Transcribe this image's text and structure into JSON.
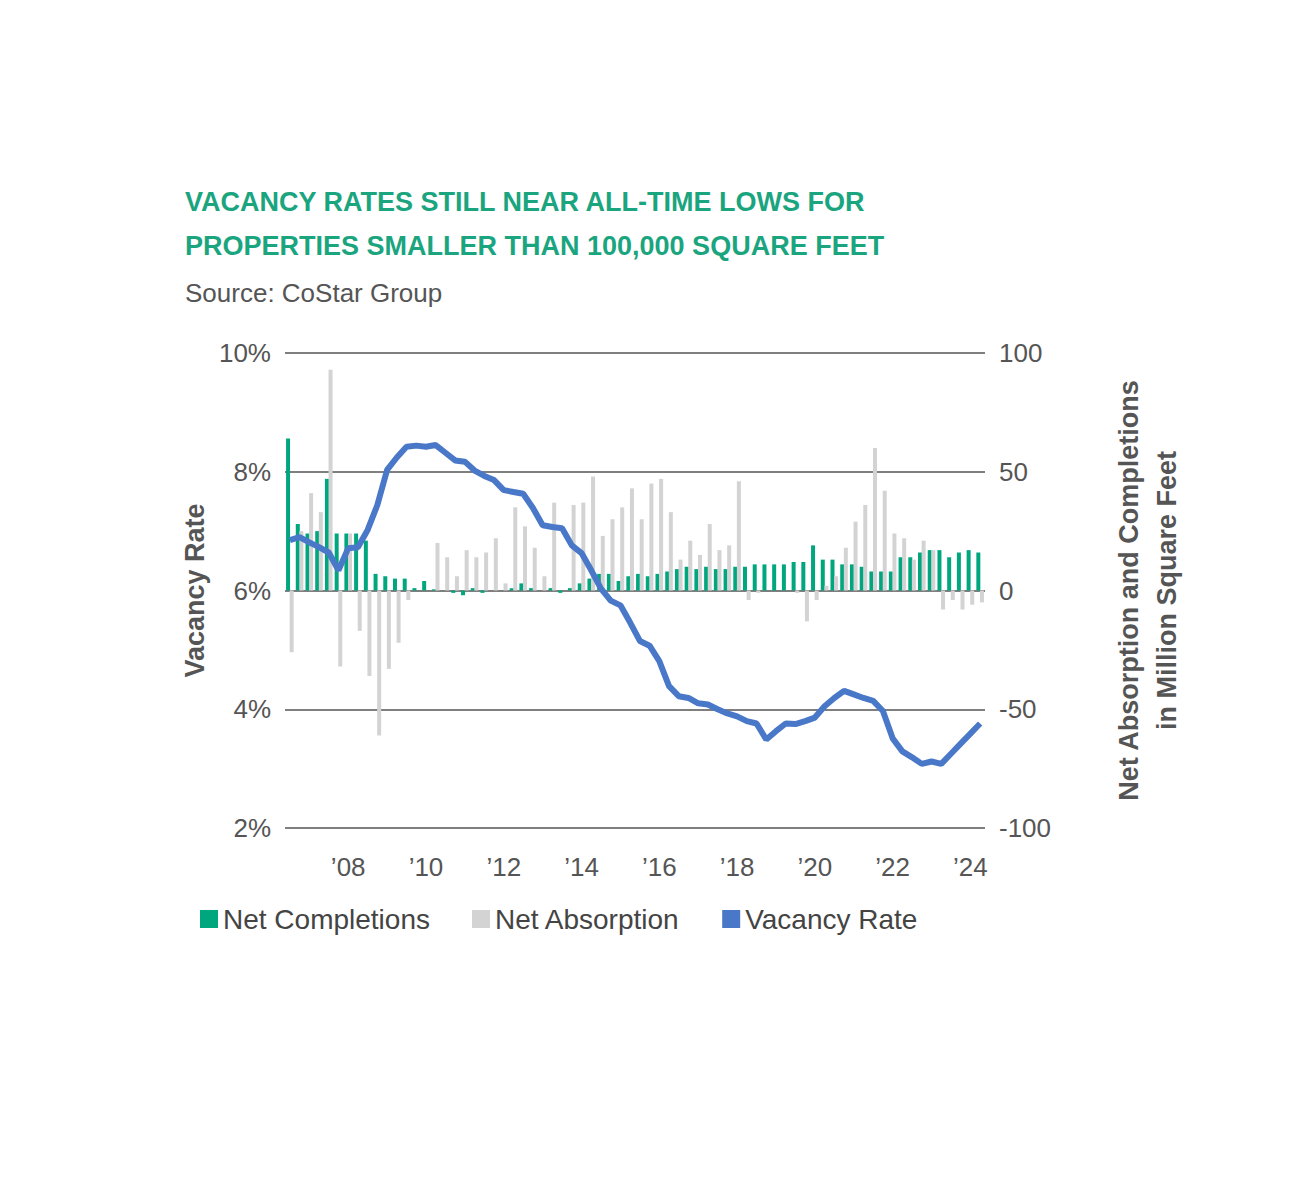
{
  "chart_data": {
    "type": "bar",
    "title": "VACANCY RATES STILL NEAR ALL-TIME LOWS FOR\nPROPERTIES SMALLER THAN 100,000 SQUARE FEET",
    "subtitle": "Source: CoStar Group",
    "y_label": "Vacancy Rate",
    "y2_label": "Net Absorption and Completions\nin Million Square Feet",
    "categories": [
      null,
      null,
      null,
      null,
      null,
      null,
      "’08",
      null,
      null,
      null,
      null,
      null,
      null,
      null,
      "’10",
      null,
      null,
      null,
      null,
      null,
      null,
      null,
      "’12",
      null,
      null,
      null,
      null,
      null,
      null,
      null,
      "’14",
      null,
      null,
      null,
      null,
      null,
      null,
      null,
      "’16",
      null,
      null,
      null,
      null,
      null,
      null,
      null,
      "’18",
      null,
      null,
      null,
      null,
      null,
      null,
      null,
      "’20",
      null,
      null,
      null,
      null,
      null,
      null,
      null,
      "’22",
      null,
      null,
      null,
      null,
      null,
      null,
      null,
      "’24",
      null
    ],
    "series": [
      {
        "name": "Net Completions",
        "type": "bar",
        "axis": "y2",
        "color": "#00a67e",
        "values": [
          64,
          28,
          24,
          25,
          47,
          24,
          24,
          24,
          21,
          7,
          6,
          5,
          5,
          1,
          4,
          0.5,
          0,
          -1,
          -2,
          1,
          -1,
          0,
          0,
          1,
          3,
          1,
          0,
          1,
          -1,
          1,
          3,
          5,
          7,
          7,
          4,
          6,
          7,
          6,
          7,
          8,
          9,
          10,
          9,
          10,
          9,
          9,
          10,
          10,
          11,
          11,
          11,
          11,
          12,
          12,
          19,
          13,
          13,
          11,
          11,
          10,
          8,
          8,
          8,
          14,
          14,
          16,
          17,
          17,
          14,
          16,
          17,
          16
        ]
      },
      {
        "name": "Net Absorption",
        "type": "bar",
        "axis": "y2",
        "color": "#d3d3d3",
        "values": [
          -26,
          25,
          41,
          33,
          93,
          -32,
          24,
          -17,
          -36,
          -61,
          -33,
          -22,
          -4,
          0,
          0,
          20,
          14,
          6,
          17,
          14,
          16,
          22,
          3,
          35,
          27,
          18,
          6,
          37,
          0,
          36,
          37,
          48,
          23,
          30,
          35,
          43,
          30,
          45,
          47,
          33,
          13,
          21,
          15,
          28,
          17,
          19,
          46,
          -4,
          -1,
          0,
          0,
          0,
          -1,
          -13,
          -4,
          2,
          6,
          18,
          29,
          36,
          60,
          42,
          24,
          22,
          13,
          21,
          17,
          -8,
          -4,
          -8,
          -6,
          -5
        ]
      },
      {
        "name": "Vacancy Rate",
        "type": "line",
        "color": "#4a78c8",
        "values": [
          6.85,
          6.9,
          6.81,
          6.73,
          6.64,
          6.34,
          6.71,
          6.73,
          7.02,
          7.44,
          8.03,
          8.24,
          8.42,
          8.44,
          8.42,
          8.45,
          8.32,
          8.19,
          8.17,
          8.02,
          7.93,
          7.86,
          7.69,
          7.66,
          7.63,
          7.39,
          7.1,
          7.07,
          7.05,
          6.76,
          6.63,
          6.34,
          6.03,
          5.83,
          5.75,
          5.46,
          5.15,
          5.07,
          4.81,
          4.39,
          4.22,
          4.19,
          4.1,
          4.08,
          4.0,
          3.93,
          3.88,
          3.8,
          3.76,
          3.49,
          3.63,
          3.76,
          3.75,
          3.8,
          3.86,
          4.05,
          4.19,
          4.31,
          4.25,
          4.19,
          4.14,
          3.97,
          3.51,
          3.29,
          3.19,
          3.08,
          3.12,
          3.08,
          3.25,
          3.42,
          3.59,
          3.76
        ]
      }
    ],
    "ylim": [
      2,
      10
    ],
    "yticks": [
      {
        "value": 2,
        "label": "2%"
      },
      {
        "value": 4,
        "label": "4%"
      },
      {
        "value": 6,
        "label": "6%"
      },
      {
        "value": 8,
        "label": "8%"
      },
      {
        "value": 10,
        "label": "10%"
      }
    ],
    "y2lim": [
      -100,
      100
    ],
    "y2ticks": [
      -100,
      -50,
      0,
      50,
      100
    ],
    "grid": true,
    "legend": "bottom"
  }
}
